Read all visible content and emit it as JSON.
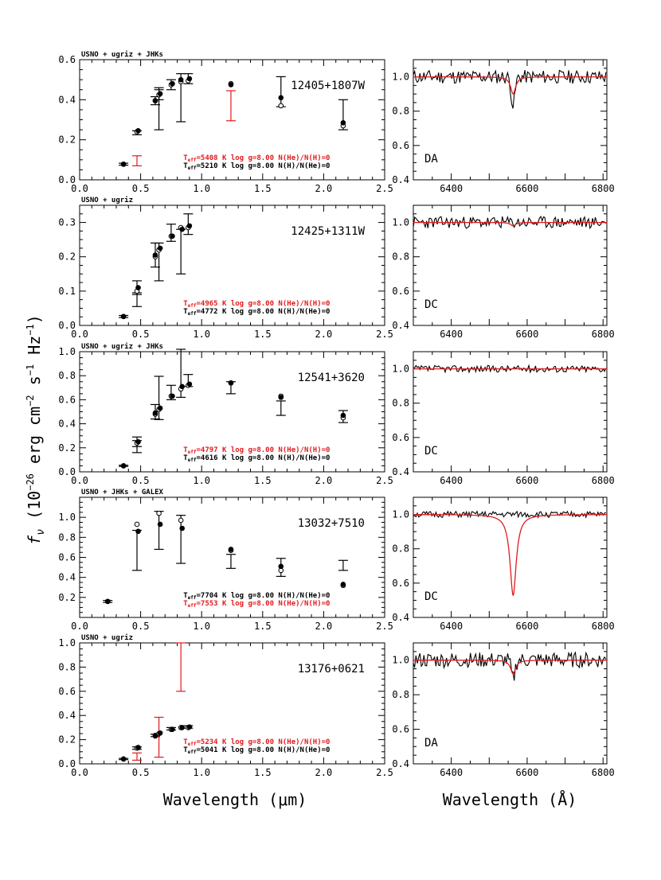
{
  "figure": {
    "y_label": "f_ν (10^-26 erg cm^-2 s^-1 Hz^-1)",
    "y_label_parts": {
      "f": "f",
      "nu": "ν",
      "pre": " (10",
      "exp1": "−26",
      "mid1": " erg cm",
      "exp2": "−2",
      "mid2": " s",
      "exp3": "−1",
      "mid3": " Hz",
      "exp4": "−1",
      "close": ")"
    },
    "x_label_left": "Wavelength (μm)",
    "x_label_right": "Wavelength (Å)",
    "colors": {
      "model_primary": "#e31a1c",
      "model_secondary": "#000000",
      "data": "#000000"
    }
  },
  "chart_data": [
    {
      "type": "scatter",
      "name_label": "12405+1807W",
      "survey": "USNO + ugriz + JHKs",
      "xlim": [
        0,
        2.5
      ],
      "ylim": [
        0,
        0.6
      ],
      "xticks": [
        0,
        0.5,
        1,
        1.5,
        2,
        2.5
      ],
      "xticklabels": [
        "0.0",
        "0.5",
        "1.0",
        "1.5",
        "2.0",
        "2.5"
      ],
      "yticks": [
        0,
        0.2,
        0.4,
        0.6
      ],
      "yticklabels": [
        "0.0",
        "0.2",
        "0.4",
        "0.6"
      ],
      "observed": [
        {
          "x": 0.36,
          "y": 0.078,
          "err": 0.005,
          "color": "black"
        },
        {
          "x": 0.47,
          "y": 0.095,
          "err": 0.025,
          "color": "red"
        },
        {
          "x": 0.47,
          "y": 0.235,
          "err": 0.01,
          "color": "black"
        },
        {
          "x": 0.62,
          "y": 0.395,
          "err": 0.02,
          "color": "black"
        },
        {
          "x": 0.65,
          "y": 0.43,
          "err": 0.03,
          "color": "black"
        },
        {
          "x": 0.65,
          "y": 0.35,
          "err": 0.1,
          "color": "black"
        },
        {
          "x": 0.75,
          "y": 0.475,
          "err": 0.025,
          "color": "black"
        },
        {
          "x": 0.83,
          "y": 0.41,
          "err": 0.12,
          "color": "black"
        },
        {
          "x": 0.89,
          "y": 0.505,
          "err": 0.025,
          "color": "black"
        },
        {
          "x": 1.24,
          "y": 0.37,
          "err": 0.075,
          "color": "red"
        },
        {
          "x": 1.65,
          "y": 0.44,
          "err": 0.075,
          "color": "black"
        },
        {
          "x": 2.16,
          "y": 0.325,
          "err": 0.075,
          "color": "black"
        }
      ],
      "model_filled": [
        [
          0.36,
          0.078
        ],
        [
          0.48,
          0.245
        ],
        [
          0.62,
          0.395
        ],
        [
          0.66,
          0.43
        ],
        [
          0.76,
          0.48
        ],
        [
          0.83,
          0.5
        ],
        [
          0.9,
          0.505
        ],
        [
          1.24,
          0.475
        ],
        [
          1.65,
          0.41
        ],
        [
          2.16,
          0.285
        ]
      ],
      "model_open": [
        [
          0.36,
          0.078
        ],
        [
          0.47,
          0.24
        ],
        [
          0.62,
          0.395
        ],
        [
          0.65,
          0.425
        ],
        [
          0.75,
          0.475
        ],
        [
          0.83,
          0.49
        ],
        [
          0.89,
          0.495
        ],
        [
          1.24,
          0.48
        ],
        [
          1.65,
          0.37
        ],
        [
          2.16,
          0.27
        ]
      ],
      "fits": [
        {
          "text": "T_eff=5408 K  log g=8.00  N(He)/N(H)=0",
          "teff": "5408",
          "color": "red"
        },
        {
          "text": "T_eff=5210 K  log g=8.00  N(H)/N(He)=0",
          "teff": "5210",
          "color": "black"
        }
      ],
      "spectrum": {
        "type": "line",
        "spectral_type": "DA",
        "xlim": [
          6300,
          6810
        ],
        "ylim": [
          0.4,
          1.1
        ],
        "xticks": [
          6400,
          6600,
          6800
        ],
        "yticks": [
          0.4,
          0.6,
          0.8,
          1.0
        ],
        "noise": 0.04,
        "obs_depth": 0.17,
        "model_depth": 0.1,
        "model_width": 8,
        "seed": 11
      }
    },
    {
      "type": "scatter",
      "name_label": "12425+1311W",
      "survey": "USNO + ugriz",
      "xlim": [
        0,
        2.5
      ],
      "ylim": [
        0,
        0.35
      ],
      "xticks": [
        0,
        0.5,
        1,
        1.5,
        2,
        2.5
      ],
      "xticklabels": [
        "0.0",
        "0.5",
        "1.0",
        "1.5",
        "2.0",
        "2.5"
      ],
      "yticks": [
        0,
        0.1,
        0.2,
        0.3
      ],
      "yticklabels": [
        "0.0",
        "0.1",
        "0.2",
        "0.3"
      ],
      "observed": [
        {
          "x": 0.36,
          "y": 0.026,
          "err": 0.003,
          "color": "black"
        },
        {
          "x": 0.47,
          "y": 0.075,
          "err": 0.02,
          "color": "black"
        },
        {
          "x": 0.47,
          "y": 0.11,
          "err": 0.02,
          "color": "black"
        },
        {
          "x": 0.62,
          "y": 0.205,
          "err": 0.035,
          "color": "black"
        },
        {
          "x": 0.65,
          "y": 0.185,
          "err": 0.055,
          "color": "black"
        },
        {
          "x": 0.75,
          "y": 0.27,
          "err": 0.025,
          "color": "black"
        },
        {
          "x": 0.83,
          "y": 0.215,
          "err": 0.065,
          "color": "black"
        },
        {
          "x": 0.89,
          "y": 0.295,
          "err": 0.03,
          "color": "black"
        }
      ],
      "model_filled": [
        [
          0.36,
          0.026
        ],
        [
          0.48,
          0.11
        ],
        [
          0.62,
          0.205
        ],
        [
          0.66,
          0.225
        ],
        [
          0.76,
          0.26
        ],
        [
          0.84,
          0.28
        ],
        [
          0.9,
          0.29
        ]
      ],
      "model_open": [
        [
          0.36,
          0.026
        ],
        [
          0.47,
          0.1
        ],
        [
          0.62,
          0.2
        ],
        [
          0.65,
          0.22
        ],
        [
          0.75,
          0.26
        ],
        [
          0.83,
          0.285
        ],
        [
          0.89,
          0.285
        ]
      ],
      "fits": [
        {
          "text": "T_eff=4965 K  log g=8.00  N(He)/N(H)=0",
          "teff": "4965",
          "color": "red"
        },
        {
          "text": "T_eff=4772 K  log g=8.00  N(H)/N(He)=0",
          "teff": "4772",
          "color": "black"
        }
      ],
      "spectrum": {
        "type": "line",
        "spectral_type": "DC",
        "xlim": [
          6300,
          6810
        ],
        "ylim": [
          0.4,
          1.1
        ],
        "xticks": [
          6400,
          6600,
          6800
        ],
        "yticks": [
          0.4,
          0.6,
          0.8,
          1.0
        ],
        "noise": 0.035,
        "obs_depth": 0.0,
        "model_depth": 0.02,
        "model_width": 8,
        "seed": 23
      }
    },
    {
      "type": "scatter",
      "name_label": "12541+3620",
      "survey": "USNO + ugriz + JHKs",
      "xlim": [
        0,
        2.5
      ],
      "ylim": [
        0,
        1.0
      ],
      "xticks": [
        0,
        0.5,
        1,
        1.5,
        2,
        2.5
      ],
      "xticklabels": [
        "0.0",
        "0.5",
        "1.0",
        "1.5",
        "2.0",
        "2.5"
      ],
      "yticks": [
        0,
        0.2,
        0.4,
        0.6,
        0.8,
        1.0
      ],
      "yticklabels": [
        "0.0",
        "0.2",
        "0.4",
        "0.6",
        "0.8",
        "1.0"
      ],
      "observed": [
        {
          "x": 0.36,
          "y": 0.05,
          "err": 0.005,
          "color": "black"
        },
        {
          "x": 0.47,
          "y": 0.21,
          "err": 0.05,
          "color": "black"
        },
        {
          "x": 0.47,
          "y": 0.25,
          "err": 0.04,
          "color": "black"
        },
        {
          "x": 0.62,
          "y": 0.5,
          "err": 0.06,
          "color": "black"
        },
        {
          "x": 0.65,
          "y": 0.615,
          "err": 0.18,
          "color": "black"
        },
        {
          "x": 0.75,
          "y": 0.66,
          "err": 0.06,
          "color": "black"
        },
        {
          "x": 0.83,
          "y": 0.82,
          "err": 0.2,
          "color": "black"
        },
        {
          "x": 0.89,
          "y": 0.76,
          "err": 0.05,
          "color": "black"
        },
        {
          "x": 1.24,
          "y": 0.7,
          "err": 0.05,
          "color": "black"
        },
        {
          "x": 1.65,
          "y": 0.53,
          "err": 0.06,
          "color": "black"
        },
        {
          "x": 2.16,
          "y": 0.46,
          "err": 0.05,
          "color": "black"
        }
      ],
      "model_filled": [
        [
          0.36,
          0.05
        ],
        [
          0.48,
          0.25
        ],
        [
          0.62,
          0.49
        ],
        [
          0.66,
          0.53
        ],
        [
          0.76,
          0.63
        ],
        [
          0.84,
          0.71
        ],
        [
          0.9,
          0.73
        ],
        [
          1.24,
          0.74
        ],
        [
          1.65,
          0.62
        ],
        [
          2.16,
          0.47
        ]
      ],
      "model_open": [
        [
          0.36,
          0.05
        ],
        [
          0.47,
          0.24
        ],
        [
          0.62,
          0.48
        ],
        [
          0.65,
          0.52
        ],
        [
          0.75,
          0.63
        ],
        [
          0.83,
          0.69
        ],
        [
          0.89,
          0.72
        ],
        [
          1.24,
          0.74
        ],
        [
          1.65,
          0.63
        ],
        [
          2.16,
          0.45
        ]
      ],
      "fits": [
        {
          "text": "T_eff=4797 K  log g=8.00  N(He)/N(H)=0",
          "teff": "4797",
          "color": "red"
        },
        {
          "text": "T_eff=4616 K  log g=8.00  N(H)/N(He)=0",
          "teff": "4616",
          "color": "black"
        }
      ],
      "spectrum": {
        "type": "line",
        "spectral_type": "DC",
        "xlim": [
          6300,
          6810
        ],
        "ylim": [
          0.4,
          1.1
        ],
        "xticks": [
          6400,
          6600,
          6800
        ],
        "yticks": [
          0.4,
          0.6,
          0.8,
          1.0
        ],
        "noise": 0.02,
        "obs_depth": 0.0,
        "model_depth": 0.0,
        "model_width": 8,
        "seed": 37
      }
    },
    {
      "type": "scatter",
      "name_label": "13032+7510",
      "survey": "USNO + JHKs + GALEX",
      "xlim": [
        0,
        2.5
      ],
      "ylim": [
        0,
        1.2
      ],
      "xticks": [
        0,
        0.5,
        1,
        1.5,
        2,
        2.5
      ],
      "xticklabels": [
        "0.0",
        "0.5",
        "1.0",
        "1.5",
        "2.0",
        "2.5"
      ],
      "yticks": [
        0.2,
        0.4,
        0.6,
        0.8,
        1.0
      ],
      "yticklabels": [
        "0.2",
        "0.4",
        "0.6",
        "0.8",
        "1.0"
      ],
      "observed": [
        {
          "x": 0.23,
          "y": 0.16,
          "err": 0.01,
          "color": "black"
        },
        {
          "x": 0.47,
          "y": 0.67,
          "err": 0.2,
          "color": "black"
        },
        {
          "x": 0.65,
          "y": 0.87,
          "err": 0.19,
          "color": "black"
        },
        {
          "x": 0.83,
          "y": 0.78,
          "err": 0.24,
          "color": "black"
        },
        {
          "x": 1.24,
          "y": 0.56,
          "err": 0.07,
          "color": "black"
        },
        {
          "x": 1.65,
          "y": 0.5,
          "err": 0.09,
          "color": "black"
        },
        {
          "x": 2.16,
          "y": 0.52,
          "err": 0.05,
          "color": "black"
        }
      ],
      "model_filled": [
        [
          0.23,
          0.16
        ],
        [
          0.48,
          0.86
        ],
        [
          0.66,
          0.93
        ],
        [
          0.84,
          0.89
        ],
        [
          1.24,
          0.68
        ],
        [
          1.65,
          0.51
        ],
        [
          2.16,
          0.33
        ]
      ],
      "model_open": [
        [
          0.23,
          0.16
        ],
        [
          0.47,
          0.93
        ],
        [
          0.65,
          1.04
        ],
        [
          0.83,
          0.97
        ],
        [
          1.24,
          0.67
        ],
        [
          1.65,
          0.47
        ],
        [
          2.16,
          0.32
        ]
      ],
      "fits": [
        {
          "text": "T_eff=7704 K  log g=8.00  N(H)/N(He)=0",
          "teff": "7704",
          "color": "black"
        },
        {
          "text": "T_eff=7553 K  log g=8.00  N(He)/N(H)=0",
          "teff": "7553",
          "color": "red"
        }
      ],
      "spectrum": {
        "type": "line",
        "spectral_type": "DC",
        "xlim": [
          6300,
          6810
        ],
        "ylim": [
          0.4,
          1.1
        ],
        "xticks": [
          6400,
          6600,
          6800
        ],
        "yticks": [
          0.4,
          0.6,
          0.8,
          1.0
        ],
        "noise": 0.018,
        "obs_depth": 0.0,
        "model_depth": 0.47,
        "model_width": 10,
        "seed": 51
      }
    },
    {
      "type": "scatter",
      "name_label": "13176+0621",
      "survey": "USNO + ugriz",
      "xlim": [
        0,
        2.5
      ],
      "ylim": [
        0,
        1.0
      ],
      "xticks": [
        0,
        0.5,
        1,
        1.5,
        2,
        2.5
      ],
      "xticklabels": [
        "0.0",
        "0.5",
        "1.0",
        "1.5",
        "2.0",
        "2.5"
      ],
      "yticks": [
        0,
        0.2,
        0.4,
        0.6,
        0.8,
        1.0
      ],
      "yticklabels": [
        "0.0",
        "0.2",
        "0.4",
        "0.6",
        "0.8",
        "1.0"
      ],
      "observed": [
        {
          "x": 0.36,
          "y": 0.04,
          "err": 0.005,
          "color": "black"
        },
        {
          "x": 0.47,
          "y": 0.06,
          "err": 0.03,
          "color": "red"
        },
        {
          "x": 0.47,
          "y": 0.13,
          "err": 0.01,
          "color": "black"
        },
        {
          "x": 0.62,
          "y": 0.235,
          "err": 0.01,
          "color": "black"
        },
        {
          "x": 0.65,
          "y": 0.22,
          "err": 0.165,
          "color": "red"
        },
        {
          "x": 0.75,
          "y": 0.29,
          "err": 0.01,
          "color": "black"
        },
        {
          "x": 0.83,
          "y": 0.8,
          "err": 0.2,
          "color": "red"
        },
        {
          "x": 0.89,
          "y": 0.305,
          "err": 0.01,
          "color": "black"
        }
      ],
      "model_filled": [
        [
          0.36,
          0.04
        ],
        [
          0.48,
          0.135
        ],
        [
          0.62,
          0.235
        ],
        [
          0.66,
          0.255
        ],
        [
          0.76,
          0.285
        ],
        [
          0.84,
          0.3
        ],
        [
          0.9,
          0.305
        ]
      ],
      "model_open": [
        [
          0.36,
          0.04
        ],
        [
          0.47,
          0.13
        ],
        [
          0.62,
          0.23
        ],
        [
          0.65,
          0.25
        ],
        [
          0.75,
          0.285
        ],
        [
          0.83,
          0.3
        ],
        [
          0.89,
          0.3
        ]
      ],
      "fits": [
        {
          "text": "T_eff=5234 K  log g=8.00  N(He)/N(H)=0",
          "teff": "5234",
          "color": "red"
        },
        {
          "text": "T_eff=5041 K  log g=8.00  N(H)/N(He)=0",
          "teff": "5041",
          "color": "black"
        }
      ],
      "spectrum": {
        "type": "line",
        "spectral_type": "DA",
        "xlim": [
          6300,
          6810
        ],
        "ylim": [
          0.4,
          1.1
        ],
        "xticks": [
          6400,
          6600,
          6800
        ],
        "yticks": [
          0.4,
          0.6,
          0.8,
          1.0
        ],
        "noise": 0.045,
        "obs_depth": 0.11,
        "model_depth": 0.08,
        "model_width": 8,
        "seed": 77
      }
    }
  ]
}
